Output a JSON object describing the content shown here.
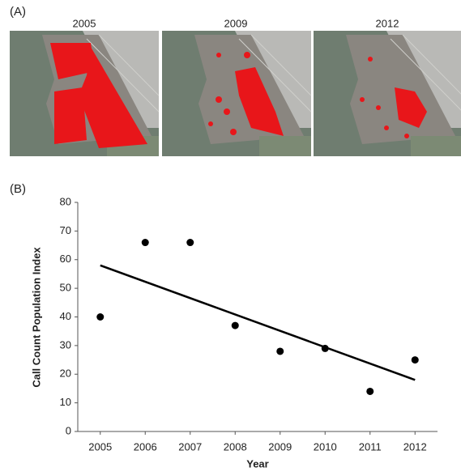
{
  "panel_a": {
    "label": "(A)",
    "images": [
      {
        "title": "2005"
      },
      {
        "title": "2009"
      },
      {
        "title": "2012"
      }
    ]
  },
  "panel_b": {
    "label": "(B)"
  },
  "chart_data": {
    "type": "scatter",
    "x": [
      2005,
      2006,
      2007,
      2008,
      2009,
      2010,
      2011,
      2012
    ],
    "values": [
      40,
      66,
      66,
      37,
      28,
      29,
      14,
      25
    ],
    "color": "#000000",
    "trend": {
      "x": [
        2005,
        2012
      ],
      "values": [
        58,
        18
      ],
      "color": "#000000"
    },
    "xlabel": "Year",
    "ylabel": "Call Count Population Index",
    "xlim": [
      2004.5,
      2012.5
    ],
    "xticks": [
      2005,
      2006,
      2007,
      2008,
      2009,
      2010,
      2011,
      2012
    ],
    "ylim": [
      0,
      80
    ],
    "yticks": [
      0,
      10,
      20,
      30,
      40,
      50,
      60,
      70,
      80
    ]
  }
}
